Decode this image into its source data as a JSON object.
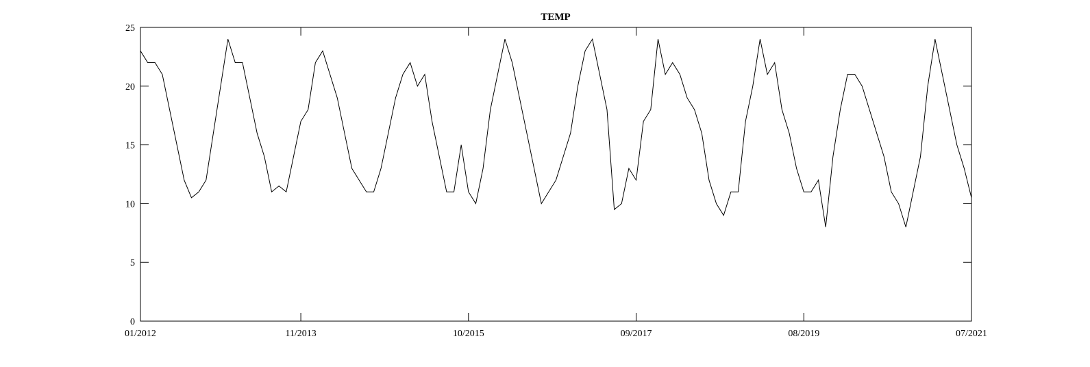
{
  "chart_data": {
    "type": "line",
    "title": "TEMP",
    "x": [
      0,
      1,
      2,
      3,
      4,
      5,
      6,
      7,
      8,
      9,
      10,
      11,
      12,
      13,
      14,
      15,
      16,
      17,
      18,
      19,
      20,
      21,
      22,
      23,
      24,
      25,
      26,
      27,
      28,
      29,
      30,
      31,
      32,
      33,
      34,
      35,
      36,
      37,
      38,
      39,
      40,
      41,
      42,
      43,
      44,
      45,
      46,
      47,
      48,
      49,
      50,
      51,
      52,
      53,
      54,
      55,
      56,
      57,
      58,
      59,
      60,
      61,
      62,
      63,
      64,
      65,
      66,
      67,
      68,
      69,
      70,
      71,
      72,
      73,
      74,
      75,
      76,
      77,
      78,
      79,
      80,
      81,
      82,
      83,
      84,
      85,
      86,
      87,
      88,
      89,
      90,
      91,
      92,
      93,
      94,
      95,
      96,
      97,
      98,
      99,
      100,
      101,
      102,
      103,
      104,
      105,
      106,
      107,
      108,
      109,
      110,
      111,
      112,
      113,
      114
    ],
    "values": [
      23,
      22,
      22,
      21,
      18,
      15,
      12,
      10.5,
      11,
      12,
      16,
      20,
      24,
      22,
      22,
      19,
      16,
      14,
      11,
      11.5,
      11,
      14,
      17,
      18,
      22,
      23,
      21,
      19,
      16,
      13,
      12,
      11,
      11,
      13,
      16,
      19,
      21,
      22,
      20,
      21,
      17,
      14,
      11,
      11,
      15,
      11,
      10,
      13,
      18,
      21,
      24,
      22,
      19,
      16,
      13,
      10,
      11,
      12,
      14,
      16,
      20,
      23,
      24,
      21,
      18,
      9.5,
      10,
      13,
      12,
      17,
      18,
      24,
      21,
      22,
      21,
      19,
      18,
      16,
      12,
      10,
      9,
      11,
      11,
      17,
      20,
      24,
      21,
      22,
      18,
      16,
      13,
      11,
      11,
      12,
      8,
      14,
      18,
      21,
      21,
      20,
      18,
      16,
      14,
      11,
      10,
      8,
      11,
      14,
      20,
      24,
      21,
      18,
      15,
      13,
      10.5
    ],
    "color": "#000000",
    "xlim": [
      0,
      114
    ],
    "xticks": [
      {
        "value": 0,
        "label": "01/2012"
      },
      {
        "value": 22,
        "label": "11/2013"
      },
      {
        "value": 45,
        "label": "10/2015"
      },
      {
        "value": 68,
        "label": "09/2017"
      },
      {
        "value": 91,
        "label": "08/2019"
      },
      {
        "value": 114,
        "label": "07/2021"
      }
    ],
    "ylim": [
      0,
      25
    ],
    "yticks": [
      0,
      5,
      10,
      15,
      20,
      25
    ],
    "grid": false
  }
}
